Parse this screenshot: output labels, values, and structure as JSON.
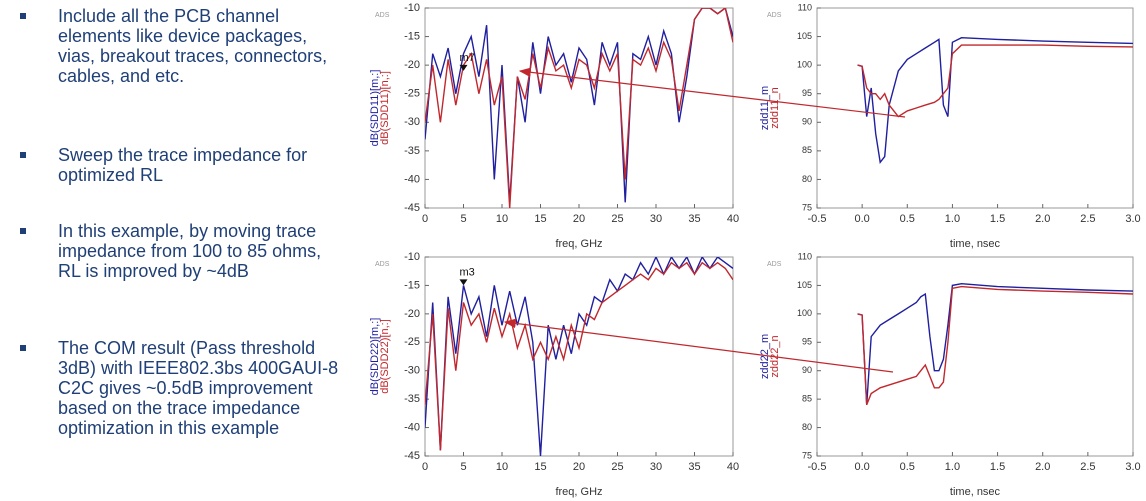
{
  "bullets": [
    "Include all the PCB channel elements like device packages, vias, breakout traces, connectors, cables, and etc.",
    "Sweep the trace impedance for optimized RL",
    "In this example, by moving trace impedance from 100 to 85 ohms, RL is improved by ~4dB",
    "The COM result (Pass threshold 3dB) with IEEE802.3bs 400GAUI-8 C2C gives ~0.5dB improvement based on the trace impedance optimization in this example"
  ],
  "chart_data": [
    {
      "type": "line",
      "watermark": "ADS",
      "xlabel": "freq, GHz",
      "grid": false,
      "x": [
        0,
        1,
        2,
        3,
        4,
        5,
        6,
        7,
        8,
        9,
        10,
        11,
        12,
        13,
        14,
        15,
        16,
        17,
        18,
        19,
        20,
        21,
        22,
        23,
        24,
        25,
        26,
        27,
        28,
        29,
        30,
        31,
        32,
        33,
        34,
        35,
        36,
        37,
        38,
        39,
        40
      ],
      "series": [
        {
          "name": "dB(SDD11)[m,:]",
          "color": "#1f1fa0",
          "values": [
            -33,
            -18,
            -22,
            -17,
            -25,
            -18,
            -15,
            -22,
            -13,
            -40,
            -20,
            -44,
            -22,
            -30,
            -16,
            -25,
            -15,
            -20,
            -18,
            -23,
            -17,
            -19,
            -27,
            -16,
            -20,
            -16,
            -44,
            -18,
            -19,
            -15,
            -20,
            -14,
            -18,
            -30,
            -22,
            -12,
            -10,
            -10,
            -11,
            -10,
            -15
          ]
        },
        {
          "name": "dB(SDD11)[n,:]",
          "color": "#c0282d",
          "values": [
            -30,
            -20,
            -30,
            -19,
            -27,
            -20,
            -18,
            -25,
            -19,
            -27,
            -22,
            -45,
            -22,
            -26,
            -18,
            -24,
            -17,
            -21,
            -20,
            -24,
            -19,
            -20,
            -24,
            -18,
            -21,
            -18,
            -40,
            -19,
            -20,
            -17,
            -21,
            -16,
            -19,
            -28,
            -20,
            -12,
            -10,
            -10,
            -11,
            -10,
            -16
          ]
        }
      ],
      "annotations": [
        {
          "text": "m7",
          "x": 5,
          "y": -21
        }
      ],
      "xlim": [
        0,
        40
      ],
      "xticks": [
        0,
        5,
        10,
        15,
        20,
        25,
        30,
        35,
        40
      ],
      "ylim": [
        -45,
        -10
      ],
      "yticks": [
        -10,
        -15,
        -20,
        -25,
        -30,
        -35,
        -40,
        -45
      ]
    },
    {
      "type": "line",
      "watermark": "ADS",
      "xlabel": "time, nsec",
      "grid": false,
      "x": [
        -0.05,
        0.0,
        0.05,
        0.1,
        0.15,
        0.2,
        0.25,
        0.3,
        0.4,
        0.5,
        0.6,
        0.7,
        0.8,
        0.85,
        0.9,
        0.95,
        1.0,
        1.1,
        1.5,
        2.0,
        2.5,
        3.0
      ],
      "series": [
        {
          "name": "zdd11_m",
          "color": "#1f1fa0",
          "values": [
            100,
            99.8,
            91,
            96,
            88,
            83,
            84,
            93,
            99,
            101,
            102,
            103,
            104,
            104.5,
            93,
            91,
            104,
            104.8,
            104.5,
            104.2,
            104,
            103.8
          ]
        },
        {
          "name": "zdd11_n",
          "color": "#c0282d",
          "values": [
            100,
            99.8,
            96,
            95,
            95,
            94,
            95,
            93,
            91,
            92,
            92.5,
            93,
            93.5,
            94,
            95,
            96,
            102,
            103.5,
            103.5,
            103.5,
            103.3,
            103.2
          ]
        }
      ],
      "xlim": [
        -0.5,
        3.0
      ],
      "xticks": [
        -0.5,
        {
          "value": 0,
          "label": "0.0"
        },
        0.5,
        {
          "value": 1,
          "label": "1.0"
        },
        1.5,
        {
          "value": 2,
          "label": "2.0"
        },
        2.5,
        {
          "value": 3,
          "label": "3.0"
        }
      ],
      "ylim": [
        75,
        110
      ],
      "yticks": [
        75,
        80,
        85,
        90,
        95,
        100,
        105,
        110
      ]
    },
    {
      "type": "line",
      "watermark": "ADS",
      "xlabel": "freq, GHz",
      "grid": false,
      "x": [
        0,
        1,
        2,
        3,
        4,
        5,
        6,
        7,
        8,
        9,
        10,
        11,
        12,
        13,
        14,
        15,
        16,
        17,
        18,
        19,
        20,
        21,
        22,
        23,
        24,
        25,
        26,
        27,
        28,
        29,
        30,
        31,
        32,
        33,
        34,
        35,
        36,
        37,
        38,
        39,
        40
      ],
      "series": [
        {
          "name": "dB(SDD22)[m,:]",
          "color": "#1f1fa0",
          "values": [
            -40,
            -18,
            -44,
            -17,
            -27,
            -15,
            -20,
            -17,
            -24,
            -15,
            -22,
            -16,
            -22,
            -17,
            -25,
            -45,
            -22,
            -28,
            -22,
            -27,
            -20,
            -22,
            -17,
            -18,
            -14,
            -16,
            -13,
            -14,
            -11,
            -13,
            -10,
            -13,
            -10,
            -12,
            -10,
            -13,
            -10,
            -12,
            -10,
            -11,
            -12
          ]
        },
        {
          "name": "dB(SDD22)[n,:]",
          "color": "#c0282d",
          "values": [
            -36,
            -20,
            -44,
            -19,
            -30,
            -18,
            -22,
            -20,
            -25,
            -19,
            -24,
            -20,
            -26,
            -22,
            -28,
            -25,
            -28,
            -24,
            -28,
            -22,
            -26,
            -20,
            -21,
            -18,
            -17,
            -16,
            -15,
            -14,
            -13,
            -14,
            -12,
            -13,
            -11,
            -12,
            -11,
            -13,
            -11,
            -12,
            -11,
            -12,
            -14
          ]
        }
      ],
      "annotations": [
        {
          "text": "m3",
          "x": 5,
          "y": -15
        }
      ],
      "xlim": [
        0,
        40
      ],
      "xticks": [
        0,
        5,
        10,
        15,
        20,
        25,
        30,
        35,
        40
      ],
      "ylim": [
        -45,
        -10
      ],
      "yticks": [
        -10,
        -15,
        -20,
        -25,
        -30,
        -35,
        -40,
        -45
      ]
    },
    {
      "type": "line",
      "watermark": "ADS",
      "xlabel": "time, nsec",
      "grid": false,
      "x": [
        -0.05,
        0.0,
        0.05,
        0.1,
        0.2,
        0.3,
        0.4,
        0.5,
        0.6,
        0.65,
        0.7,
        0.75,
        0.8,
        0.85,
        0.9,
        0.95,
        1.0,
        1.1,
        1.5,
        2.0,
        2.5,
        3.0
      ],
      "series": [
        {
          "name": "zdd22_m",
          "color": "#1f1fa0",
          "values": [
            100,
            99.8,
            84,
            96,
            98,
            99,
            100,
            101,
            102,
            103,
            103.5,
            96,
            90,
            90,
            92,
            98,
            105,
            105.3,
            104.8,
            104.5,
            104.2,
            104
          ]
        },
        {
          "name": "zdd22_n",
          "color": "#c0282d",
          "values": [
            100,
            99.8,
            84,
            86,
            87,
            87.5,
            88,
            88.5,
            89,
            90,
            91,
            89,
            87,
            87,
            88,
            95,
            104.5,
            104.8,
            104.3,
            104,
            103.8,
            103.5
          ]
        }
      ],
      "xlim": [
        -0.5,
        3.0
      ],
      "xticks": [
        -0.5,
        {
          "value": 0,
          "label": "0.0"
        },
        0.5,
        {
          "value": 1,
          "label": "1.0"
        },
        1.5,
        {
          "value": 2,
          "label": "2.0"
        },
        2.5,
        {
          "value": 3,
          "label": "3.0"
        }
      ],
      "ylim": [
        75,
        110
      ],
      "yticks": [
        75,
        80,
        85,
        90,
        95,
        100,
        105,
        110
      ]
    }
  ]
}
